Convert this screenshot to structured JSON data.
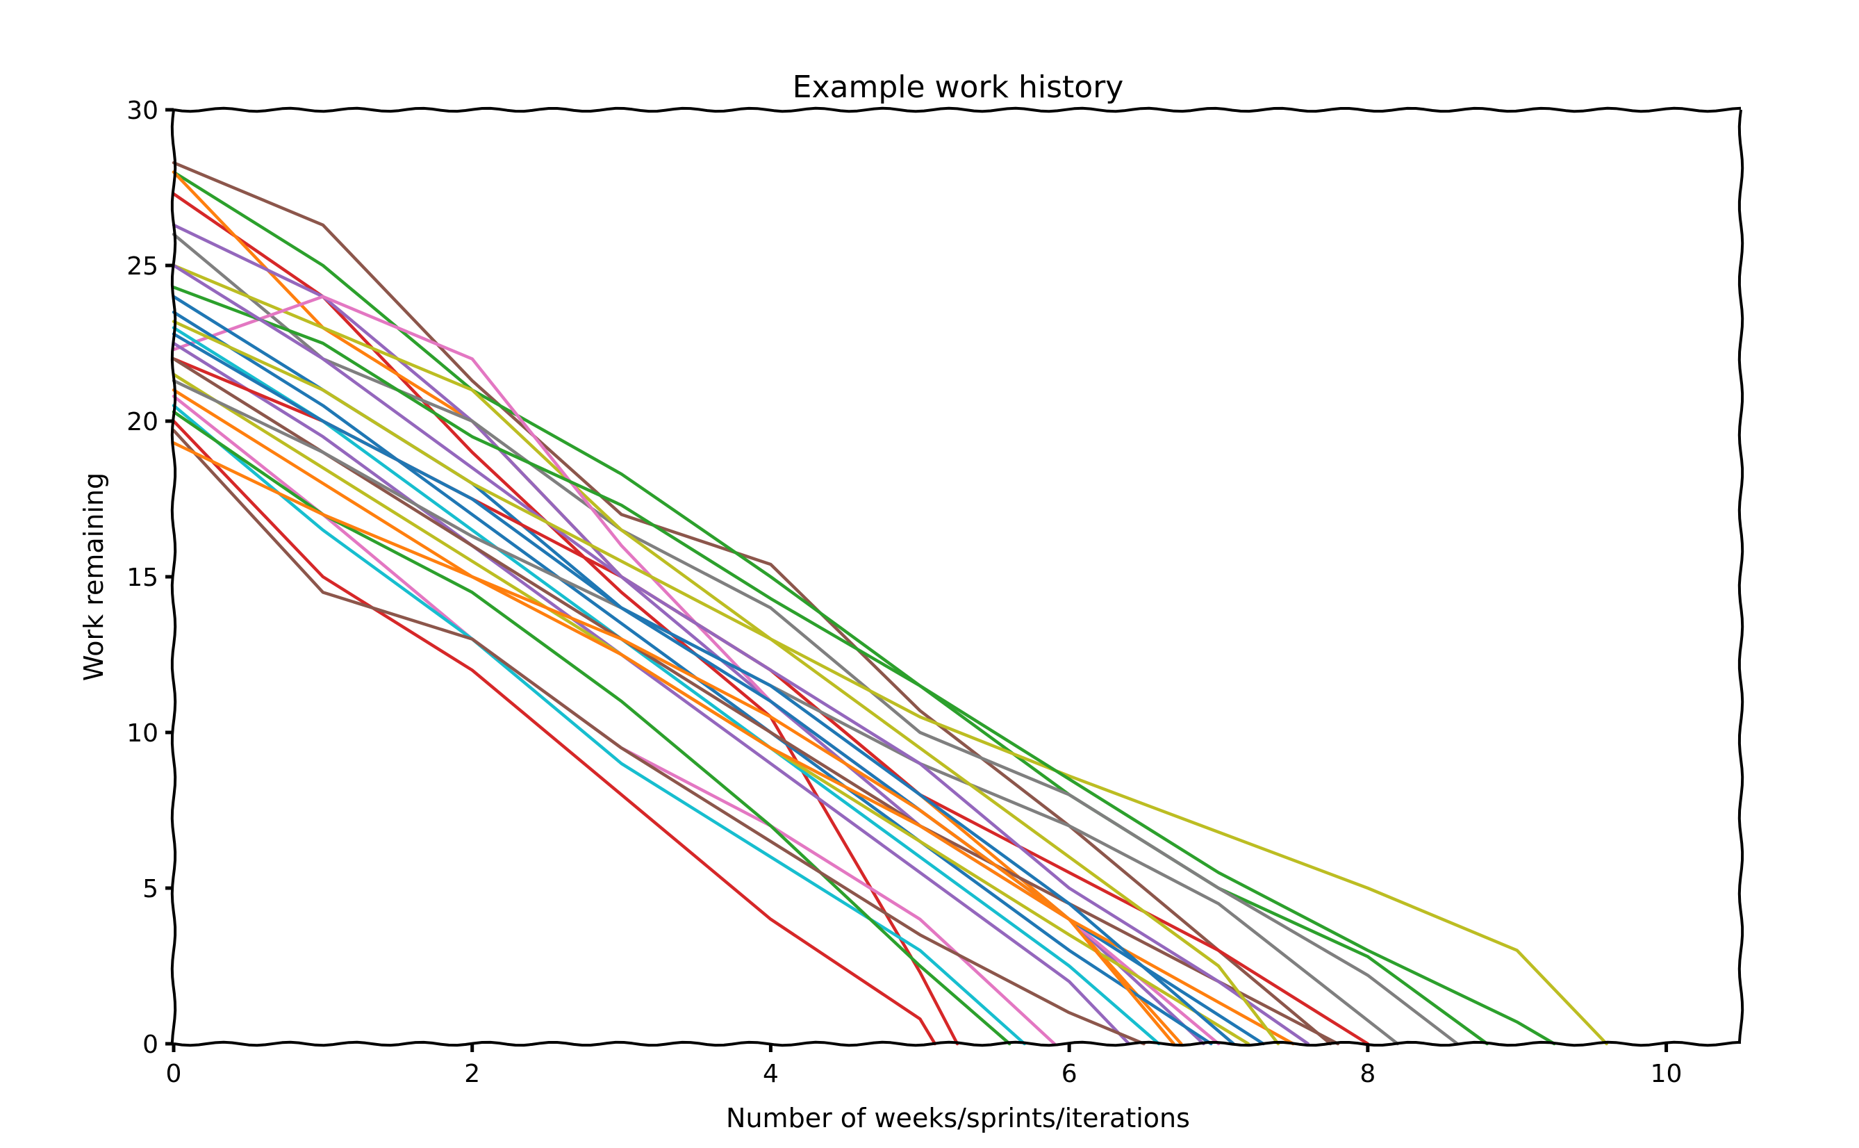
{
  "chart_data": {
    "type": "line",
    "title": "Example work history",
    "xlabel": "Number of weeks/sprints/iterations",
    "ylabel": "Work remaining",
    "xlim": [
      0,
      10.5
    ],
    "ylim": [
      0,
      30
    ],
    "x_ticks": [
      "0",
      "2",
      "4",
      "6",
      "8",
      "10"
    ],
    "y_ticks": [
      "0",
      "5",
      "10",
      "15",
      "20",
      "25",
      "30"
    ],
    "grid": false,
    "legend": "none",
    "style": "xkcd",
    "palette": [
      "#1f77b4",
      "#ff7f0e",
      "#2ca02c",
      "#d62728",
      "#9467bd",
      "#8c564b",
      "#e377c2",
      "#7f7f7f",
      "#bcbd22",
      "#17becf"
    ],
    "series": [
      {
        "color": "#8c564b",
        "x": [
          0,
          1,
          2,
          3,
          4,
          5,
          6,
          7,
          7.75
        ],
        "y": [
          28.3,
          26.3,
          21.3,
          17.0,
          15.4,
          10.7,
          7.0,
          3.0,
          0
        ]
      },
      {
        "color": "#2ca02c",
        "x": [
          0,
          1,
          2,
          3,
          4,
          5,
          6,
          7,
          8,
          8.8
        ],
        "y": [
          28.0,
          25.0,
          21.0,
          18.3,
          15.0,
          11.5,
          8.0,
          5.0,
          2.8,
          0
        ]
      },
      {
        "color": "#d62728",
        "x": [
          0,
          1,
          2,
          3,
          4,
          5,
          5.25
        ],
        "y": [
          27.3,
          24.0,
          19.0,
          14.5,
          10.5,
          2.3,
          0
        ]
      },
      {
        "color": "#ff7f0e",
        "x": [
          0,
          1,
          2,
          3,
          4,
          5,
          6,
          6.75
        ],
        "y": [
          28.0,
          23.0,
          20.0,
          15.0,
          12.0,
          8.0,
          4.0,
          0
        ]
      },
      {
        "color": "#9467bd",
        "x": [
          0,
          1,
          2,
          3,
          4,
          5,
          6,
          6.9
        ],
        "y": [
          26.3,
          24.0,
          20.0,
          15.0,
          11.0,
          7.0,
          4.0,
          0
        ]
      },
      {
        "color": "#7f7f7f",
        "x": [
          0,
          1,
          2,
          3,
          4,
          5,
          6,
          7,
          8,
          8.6
        ],
        "y": [
          26.0,
          22.0,
          20.0,
          16.5,
          14.0,
          10.0,
          8.0,
          5.0,
          2.2,
          0
        ]
      },
      {
        "color": "#bcbd22",
        "x": [
          0,
          1,
          2,
          3,
          4,
          5,
          6,
          7,
          8,
          9,
          9.6
        ],
        "y": [
          25.0,
          23.0,
          21.0,
          16.5,
          13.0,
          10.5,
          8.6,
          6.8,
          5.0,
          3.0,
          0
        ]
      },
      {
        "color": "#e377c2",
        "x": [
          0,
          1,
          2,
          3,
          4,
          5,
          6,
          7.0
        ],
        "y": [
          22.3,
          24.0,
          22.0,
          16.0,
          11.0,
          7.5,
          4.0,
          0
        ]
      },
      {
        "color": "#2ca02c",
        "x": [
          0,
          1,
          2,
          3,
          4,
          5,
          6,
          7,
          8,
          9,
          9.25
        ],
        "y": [
          24.3,
          22.5,
          19.5,
          17.3,
          14.3,
          11.5,
          8.5,
          5.5,
          3.0,
          0.7,
          0
        ]
      },
      {
        "color": "#1f77b4",
        "x": [
          0,
          1,
          2,
          3,
          4,
          5,
          6,
          7.3
        ],
        "y": [
          24.0,
          21.0,
          18.0,
          14.0,
          11.0,
          7.5,
          4.0,
          0
        ]
      },
      {
        "color": "#1f77b4",
        "x": [
          0,
          1,
          2,
          3,
          4,
          5,
          6,
          6.95
        ],
        "y": [
          23.5,
          20.5,
          17.0,
          13.5,
          10.0,
          6.5,
          3.0,
          0
        ]
      },
      {
        "color": "#17becf",
        "x": [
          0,
          1,
          2,
          3,
          4,
          5,
          6,
          6.6
        ],
        "y": [
          23.0,
          20.0,
          16.5,
          13.0,
          9.5,
          6.0,
          2.5,
          0
        ]
      },
      {
        "color": "#9467bd",
        "x": [
          0,
          1,
          2,
          3,
          4,
          5,
          6,
          6.4
        ],
        "y": [
          22.5,
          19.5,
          16.0,
          12.5,
          9.0,
          5.5,
          2.0,
          0
        ]
      },
      {
        "color": "#d62728",
        "x": [
          0,
          1,
          2,
          3,
          4,
          5,
          6,
          7,
          8.0
        ],
        "y": [
          22.0,
          20.0,
          17.5,
          15.0,
          12.0,
          8.0,
          5.5,
          3.0,
          0
        ]
      },
      {
        "color": "#8c564b",
        "x": [
          0,
          1,
          2,
          3,
          4,
          5,
          6,
          7,
          7.8
        ],
        "y": [
          22.0,
          19.0,
          16.0,
          13.0,
          10.0,
          7.0,
          4.5,
          2.0,
          0
        ]
      },
      {
        "color": "#bcbd22",
        "x": [
          0,
          1,
          2,
          3,
          4,
          5,
          6,
          7.2
        ],
        "y": [
          21.5,
          18.5,
          15.5,
          12.5,
          9.5,
          6.5,
          3.5,
          0
        ]
      },
      {
        "color": "#7f7f7f",
        "x": [
          0,
          1,
          2,
          3,
          4,
          5,
          6,
          7,
          8.2
        ],
        "y": [
          21.3,
          19.0,
          16.3,
          14.0,
          11.5,
          9.0,
          7.0,
          4.5,
          0
        ]
      },
      {
        "color": "#ff7f0e",
        "x": [
          0,
          1,
          2,
          3,
          4,
          5,
          6,
          7.5
        ],
        "y": [
          21.0,
          18.0,
          15.0,
          12.5,
          9.5,
          7.0,
          4.0,
          0
        ]
      },
      {
        "color": "#e377c2",
        "x": [
          0,
          1,
          2,
          3,
          4,
          5,
          5.9
        ],
        "y": [
          20.8,
          17.0,
          13.0,
          9.5,
          7.0,
          4.0,
          0
        ]
      },
      {
        "color": "#17becf",
        "x": [
          0,
          1,
          2,
          3,
          4,
          5,
          5.7
        ],
        "y": [
          20.5,
          16.5,
          13.0,
          9.0,
          6.0,
          3.0,
          0
        ]
      },
      {
        "color": "#2ca02c",
        "x": [
          0,
          1,
          2,
          3,
          4,
          5,
          5.6
        ],
        "y": [
          20.3,
          17.0,
          14.5,
          11.0,
          7.0,
          2.5,
          0
        ]
      },
      {
        "color": "#d62728",
        "x": [
          0,
          1,
          2,
          3,
          4,
          5,
          5.1
        ],
        "y": [
          20.0,
          15.0,
          12.0,
          8.0,
          4.0,
          0.8,
          0
        ]
      },
      {
        "color": "#8c564b",
        "x": [
          0,
          1,
          2,
          3,
          4,
          5,
          6,
          6.5
        ],
        "y": [
          19.7,
          14.5,
          13.0,
          9.5,
          6.5,
          3.5,
          1.0,
          0
        ]
      },
      {
        "color": "#ff7f0e",
        "x": [
          0,
          1,
          2,
          3,
          4,
          5,
          6,
          6.7
        ],
        "y": [
          19.3,
          17.0,
          15.0,
          13.0,
          10.5,
          7.5,
          4.0,
          0
        ]
      },
      {
        "color": "#9467bd",
        "x": [
          0,
          1,
          2,
          3,
          4,
          5,
          6,
          7,
          7.6
        ],
        "y": [
          25.0,
          22.0,
          18.5,
          15.0,
          12.0,
          9.0,
          5.0,
          2.0,
          0
        ]
      },
      {
        "color": "#1f77b4",
        "x": [
          0,
          1,
          2,
          3,
          4,
          5,
          6,
          7.1
        ],
        "y": [
          22.8,
          20.0,
          17.5,
          14.0,
          11.5,
          8.0,
          4.5,
          0
        ]
      },
      {
        "color": "#bcbd22",
        "x": [
          0,
          1,
          2,
          3,
          4,
          5,
          6,
          7,
          7.4
        ],
        "y": [
          23.2,
          21.0,
          18.0,
          15.5,
          13.0,
          9.5,
          6.0,
          2.5,
          0
        ]
      }
    ]
  }
}
